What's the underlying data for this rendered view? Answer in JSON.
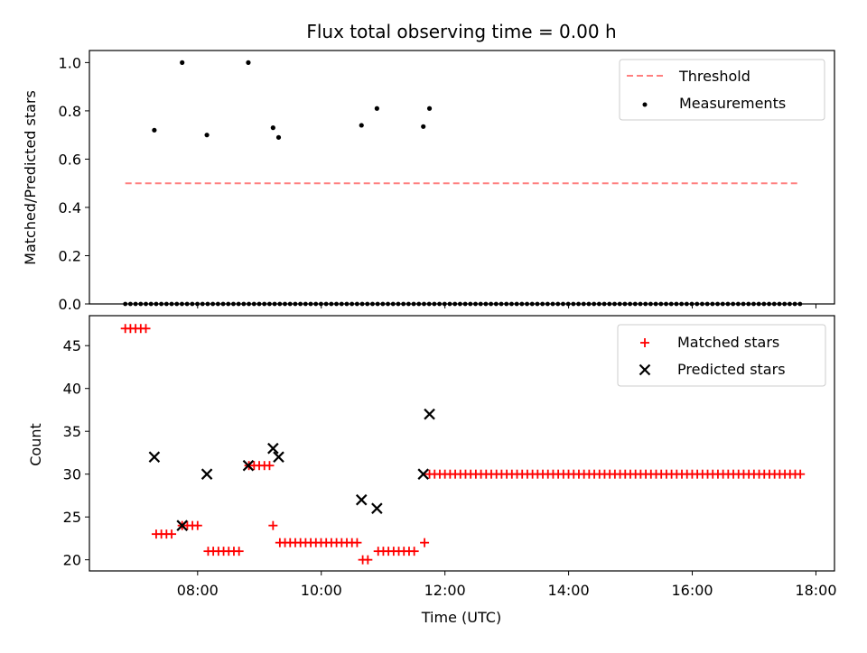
{
  "chart_data": [
    {
      "type": "scatter",
      "title": "Flux total observing time = 0.00 h",
      "xlabel": "",
      "ylabel": "Matched/Predicted stars",
      "ylim": [
        0.0,
        1.05
      ],
      "yticks": [
        0.0,
        0.2,
        0.4,
        0.6,
        0.8,
        1.0
      ],
      "ytick_labels": [
        "0.0",
        "0.2",
        "0.4",
        "0.6",
        "0.8",
        "1.0"
      ],
      "xlim_hours": [
        6.25,
        18.3
      ],
      "legend_position": "top-right",
      "legend": [
        "Threshold",
        "Measurements"
      ],
      "threshold": {
        "name": "Threshold",
        "value": 0.5,
        "x_start": 6.83,
        "x_end": 17.75,
        "color": "#ff7f7f",
        "style": "dashed"
      },
      "series": [
        {
          "name": "Measurements",
          "color": "#000000",
          "marker": "dot",
          "points": [
            [
              7.3,
              0.72
            ],
            [
              7.75,
              1.0
            ],
            [
              8.15,
              0.7
            ],
            [
              8.82,
              1.0
            ],
            [
              9.22,
              0.73
            ],
            [
              9.31,
              0.69
            ],
            [
              10.65,
              0.74
            ],
            [
              10.9,
              0.81
            ],
            [
              11.65,
              0.735
            ],
            [
              11.75,
              0.81
            ]
          ],
          "zero_range": [
            6.83,
            17.75
          ],
          "zero_step": 0.0833,
          "zero_value": 0.0
        }
      ]
    },
    {
      "type": "scatter",
      "title": "",
      "xlabel": "Time (UTC)",
      "ylabel": "Count",
      "ylim": [
        18.7,
        48.5
      ],
      "yticks": [
        20,
        25,
        30,
        35,
        40,
        45
      ],
      "ytick_labels": [
        "20",
        "25",
        "30",
        "35",
        "40",
        "45"
      ],
      "xlim_hours": [
        6.25,
        18.3
      ],
      "xticks_hours": [
        8,
        10,
        12,
        14,
        16,
        18
      ],
      "xtick_labels": [
        "08:00",
        "10:00",
        "12:00",
        "14:00",
        "16:00",
        "18:00"
      ],
      "legend_position": "top-right",
      "legend": [
        "Matched stars",
        "Predicted stars"
      ],
      "series": [
        {
          "name": "Matched stars",
          "color": "#ff0000",
          "marker": "plus",
          "segments": [
            {
              "start": 6.83,
              "end": 7.17,
              "step": 0.0833,
              "value": 47
            },
            {
              "start": 7.33,
              "end": 7.58,
              "step": 0.0833,
              "value": 23
            },
            {
              "start": 7.75,
              "end": 8.08,
              "step": 0.0833,
              "value": 24
            },
            {
              "start": 8.17,
              "end": 8.75,
              "step": 0.0833,
              "value": 21
            },
            {
              "start": 8.83,
              "end": 9.17,
              "step": 0.0833,
              "value": 31
            },
            {
              "start": 9.22,
              "end": 9.22,
              "step": 0.0833,
              "value": 24
            },
            {
              "start": 9.33,
              "end": 10.58,
              "step": 0.0833,
              "value": 22
            },
            {
              "start": 10.67,
              "end": 10.83,
              "step": 0.0833,
              "value": 20
            },
            {
              "start": 10.92,
              "end": 11.58,
              "step": 0.0833,
              "value": 21
            },
            {
              "start": 11.67,
              "end": 11.67,
              "step": 0.0833,
              "value": 22
            },
            {
              "start": 11.75,
              "end": 17.75,
              "step": 0.0833,
              "value": 30
            }
          ]
        },
        {
          "name": "Predicted stars",
          "color": "#000000",
          "marker": "x",
          "points": [
            [
              7.3,
              32
            ],
            [
              7.75,
              24
            ],
            [
              8.15,
              30
            ],
            [
              8.82,
              31
            ],
            [
              9.22,
              33
            ],
            [
              9.31,
              32
            ],
            [
              10.65,
              27
            ],
            [
              10.9,
              26
            ],
            [
              11.65,
              30
            ],
            [
              11.75,
              37
            ]
          ]
        }
      ]
    }
  ]
}
